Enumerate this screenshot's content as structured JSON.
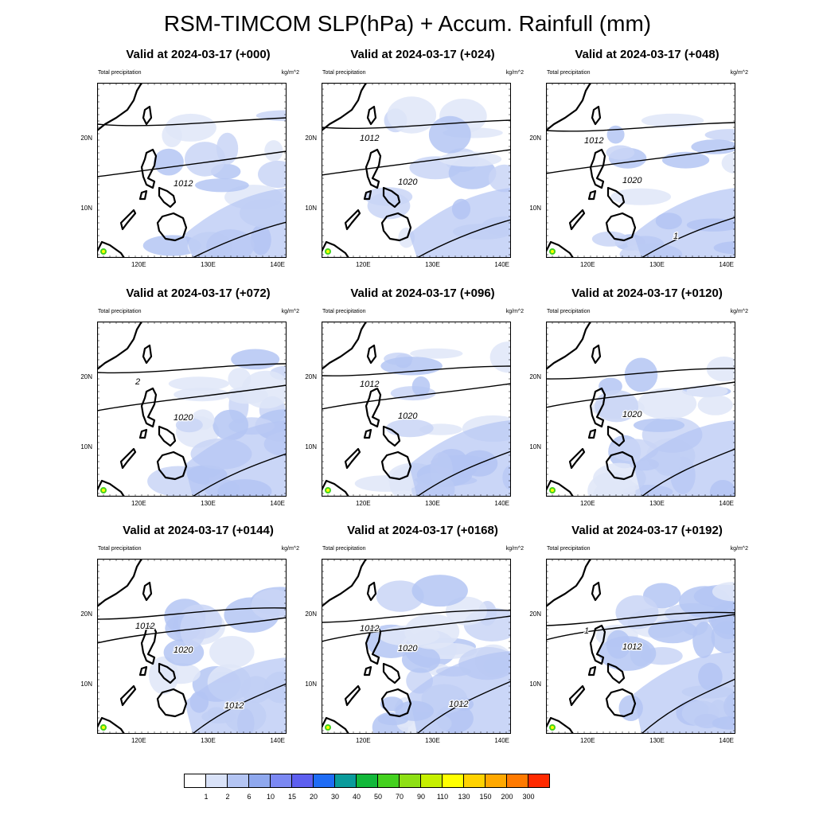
{
  "title": "RSM-TIMCOM SLP(hPa) + Accum. Rainfull (mm)",
  "panel_left_label": "Total precipitation",
  "panel_right_label": "kg/m^2",
  "lat_labels": [
    "20N",
    "10N"
  ],
  "lon_labels": [
    "120E",
    "130E",
    "140E"
  ],
  "panels": [
    {
      "title": "Valid at 2024-03-17 (+000)",
      "isobars": [
        "1012"
      ],
      "rain_level": 1
    },
    {
      "title": "Valid at 2024-03-17 (+024)",
      "isobars": [
        "1020",
        "1012"
      ],
      "rain_level": 1
    },
    {
      "title": "Valid at 2024-03-17 (+048)",
      "isobars": [
        "1020",
        "1012",
        "1"
      ],
      "rain_level": 1
    },
    {
      "title": "Valid at 2024-03-17 (+072)",
      "isobars": [
        "1020",
        "2"
      ],
      "rain_level": 2
    },
    {
      "title": "Valid at 2024-03-17 (+096)",
      "isobars": [
        "1020",
        "1012"
      ],
      "rain_level": 2
    },
    {
      "title": "Valid at 2024-03-17 (+0120)",
      "isobars": [
        "1020"
      ],
      "rain_level": 2
    },
    {
      "title": "Valid at 2024-03-17 (+0144)",
      "isobars": [
        "1020",
        "1012",
        "1012"
      ],
      "rain_level": 2
    },
    {
      "title": "Valid at 2024-03-17 (+0168)",
      "isobars": [
        "1020",
        "1012",
        "1012"
      ],
      "rain_level": 3
    },
    {
      "title": "Valid at 2024-03-17 (+0192)",
      "isobars": [
        "1012",
        "1"
      ],
      "rain_level": 3
    }
  ],
  "colorbar": {
    "labels": [
      "1",
      "2",
      "6",
      "10",
      "15",
      "20",
      "30",
      "40",
      "50",
      "70",
      "90",
      "110",
      "130",
      "150",
      "200",
      "300"
    ],
    "colors": [
      "#ffffff",
      "#d9e2f8",
      "#b4c5f3",
      "#8fa8ee",
      "#7b88f2",
      "#5d5ff0",
      "#1f6cf5",
      "#0a9b9b",
      "#12b83a",
      "#44d11f",
      "#8ee014",
      "#c6f000",
      "#ffff00",
      "#ffd200",
      "#ffa800",
      "#ff7a00",
      "#ff2a00"
    ]
  }
}
